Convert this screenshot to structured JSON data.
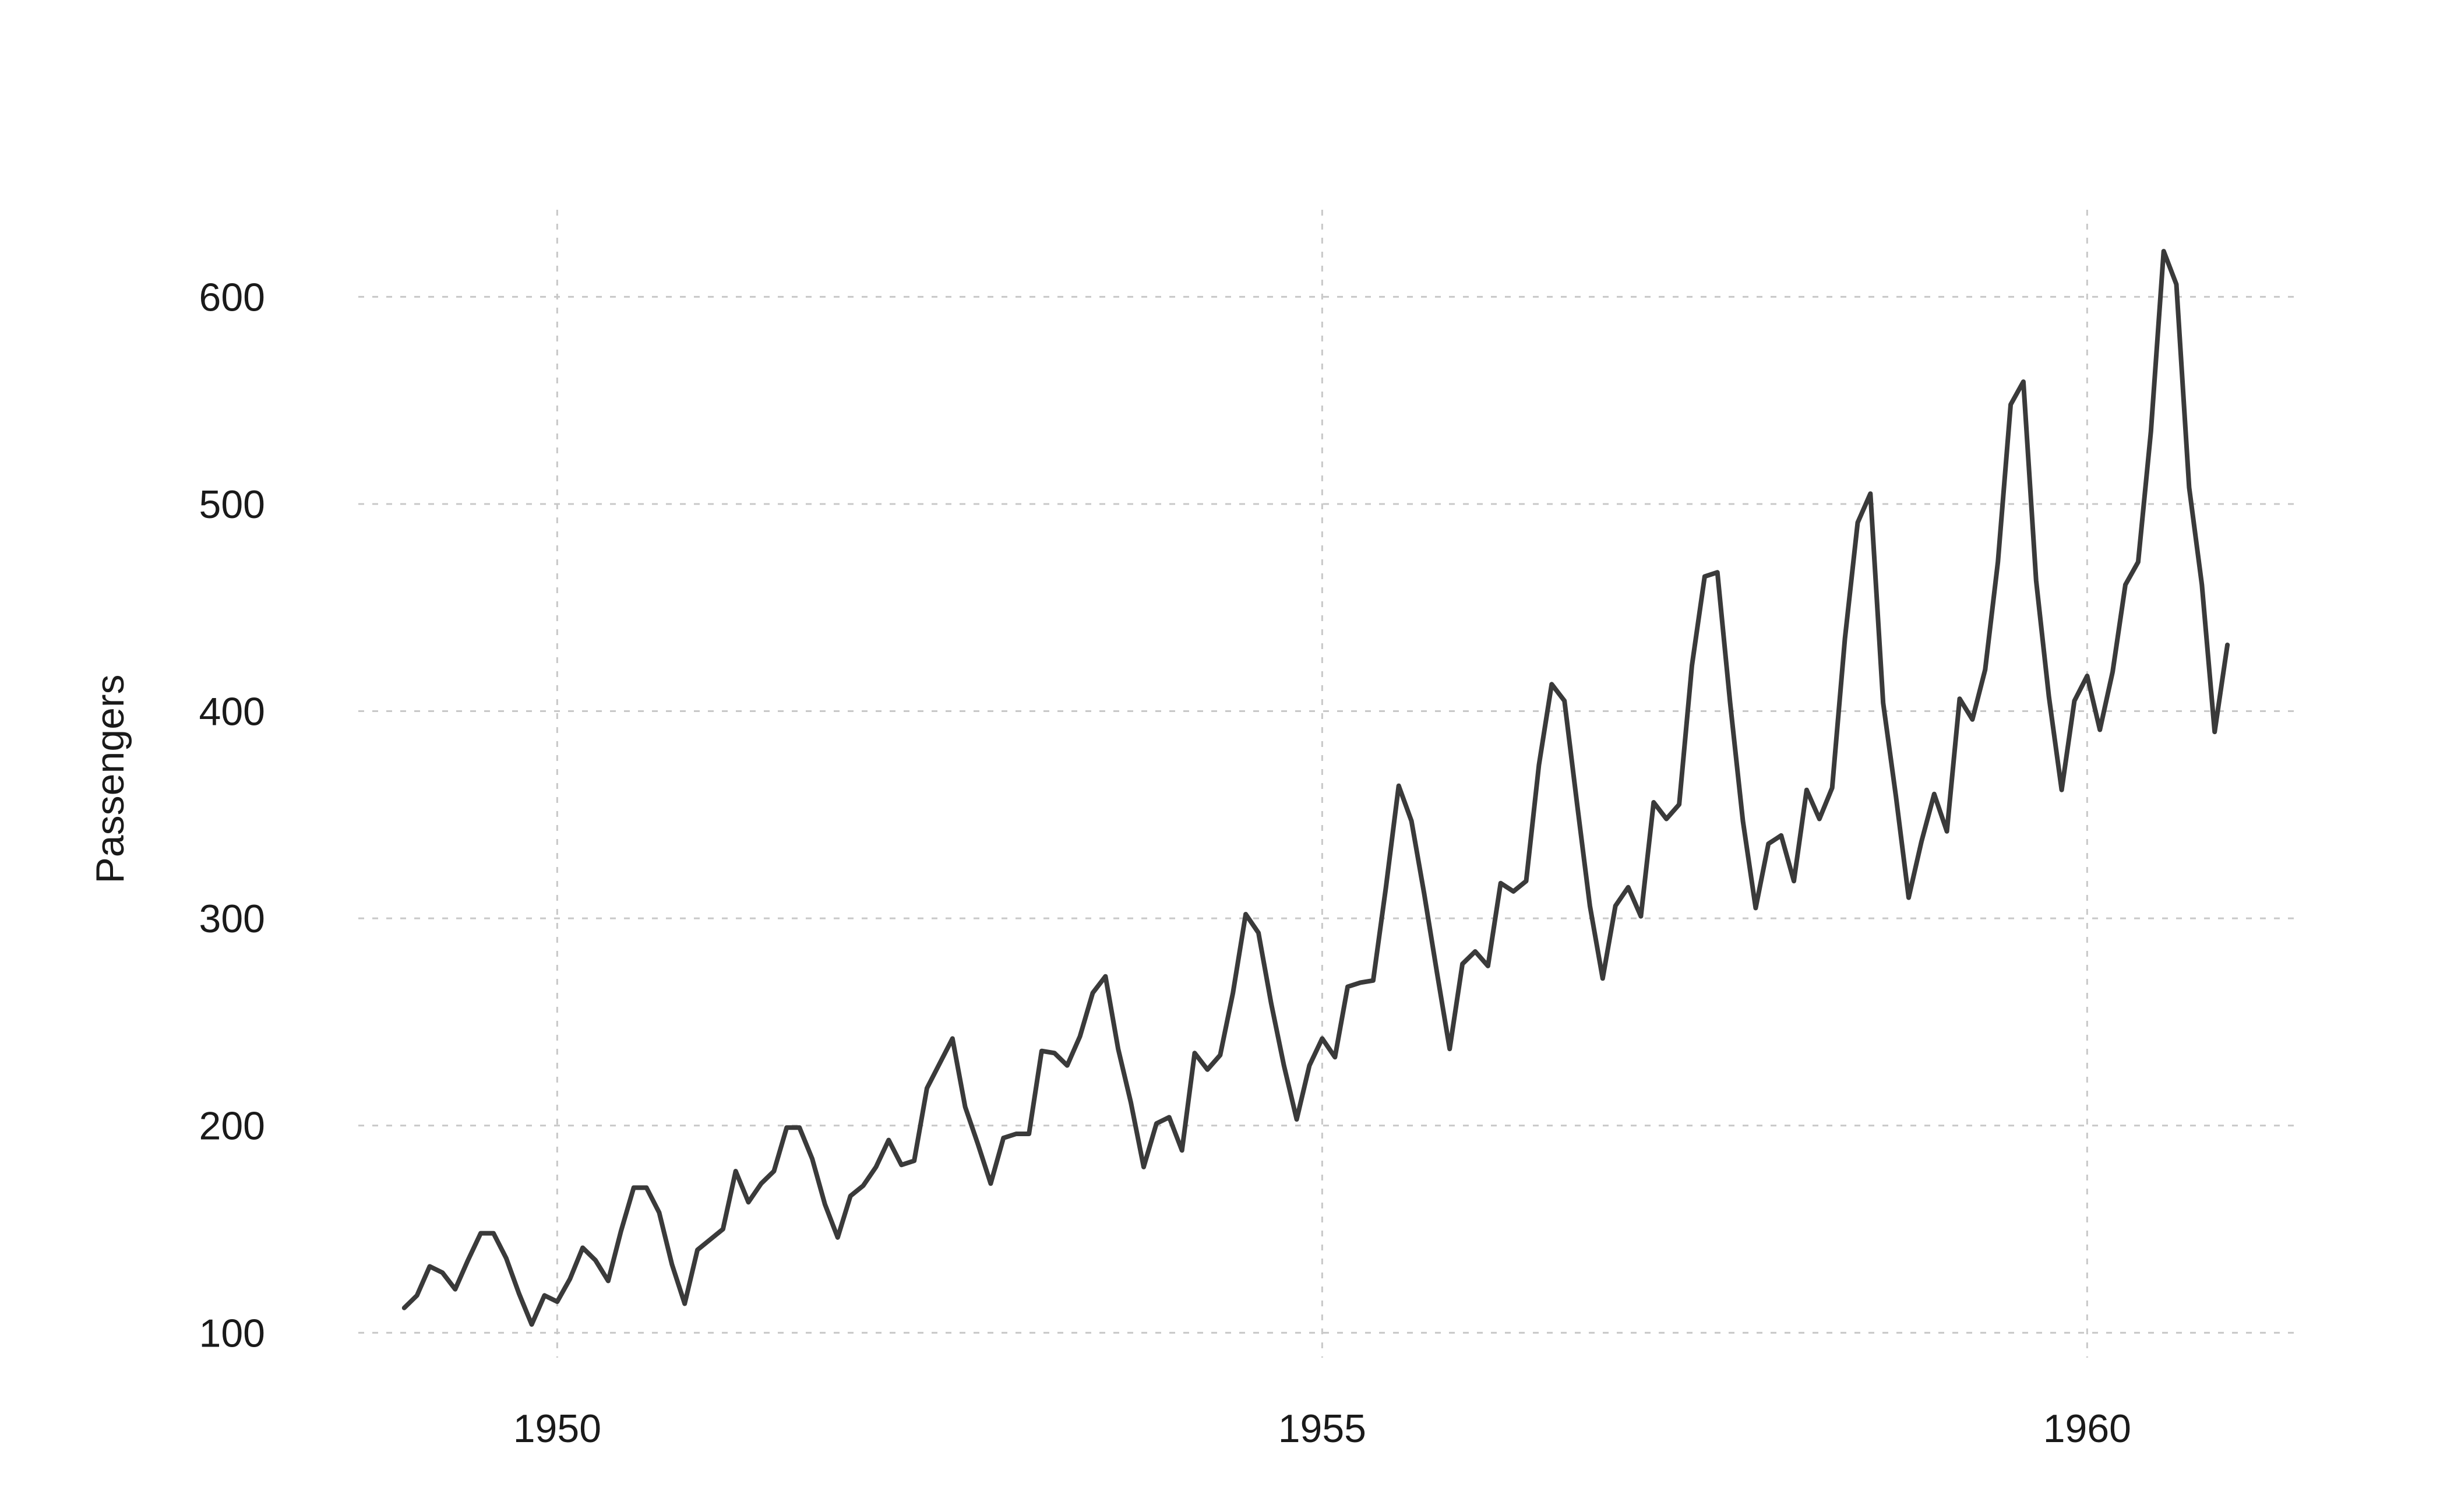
{
  "chart_data": {
    "type": "line",
    "title": "",
    "xlabel": "",
    "ylabel": "Passengers",
    "xlim": [
      1948.7,
      1961.4
    ],
    "ylim": [
      88,
      642
    ],
    "x_ticks": [
      1950,
      1955,
      1960
    ],
    "y_ticks": [
      100,
      200,
      300,
      400,
      500,
      600
    ],
    "grid": true,
    "grid_style": "dotted",
    "legend": "none",
    "line_color": "#3a3a3a",
    "grid_color": "#c8c8c8",
    "series": [
      {
        "x_start": 1949.0,
        "x_step": 0.0833333,
        "values": [
          112,
          118,
          132,
          129,
          121,
          135,
          148,
          148,
          136,
          119,
          104,
          118,
          115,
          126,
          141,
          135,
          125,
          149,
          170,
          170,
          158,
          133,
          114,
          140,
          145,
          150,
          178,
          163,
          172,
          178,
          199,
          199,
          184,
          162,
          146,
          166,
          171,
          180,
          193,
          181,
          183,
          218,
          230,
          242,
          209,
          191,
          172,
          194,
          196,
          196,
          236,
          235,
          229,
          243,
          264,
          272,
          237,
          211,
          180,
          201,
          204,
          188,
          235,
          227,
          234,
          264,
          302,
          293,
          259,
          229,
          203,
          229,
          242,
          233,
          267,
          269,
          270,
          315,
          364,
          347,
          312,
          274,
          237,
          278,
          284,
          277,
          317,
          313,
          318,
          374,
          413,
          405,
          355,
          306,
          271,
          306,
          315,
          301,
          356,
          348,
          355,
          422,
          465,
          467,
          404,
          347,
          305,
          336,
          340,
          318,
          362,
          348,
          363,
          435,
          491,
          505,
          404,
          359,
          310,
          337,
          360,
          342,
          406,
          396,
          420,
          472,
          548,
          559,
          463,
          407,
          362,
          405,
          417,
          391,
          419,
          461,
          472,
          535,
          622,
          606,
          508,
          461,
          390,
          432
        ]
      }
    ]
  }
}
